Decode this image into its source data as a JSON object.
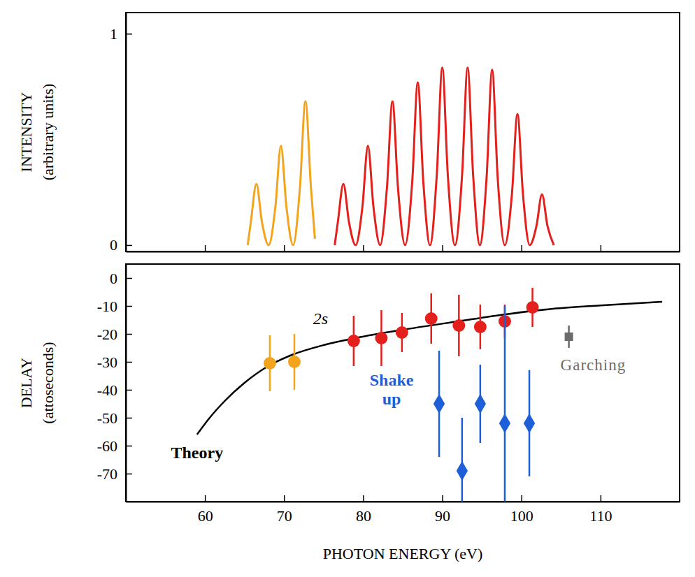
{
  "chart_data": [
    {
      "type": "line",
      "y_label": [
        "INTENSITY",
        "(arbitrary units)"
      ],
      "xlim": [
        50,
        120
      ],
      "xticks": [
        60,
        70,
        80,
        90,
        100,
        110
      ],
      "ylim": [
        -0.03,
        1.1
      ],
      "yticks": [
        0,
        1
      ],
      "tick_labels": "y",
      "series": [
        {
          "color": "#f2a51c",
          "x": [
            65.4,
            65.8,
            66.5,
            67.2,
            68.05,
            68.9,
            69.6,
            70.3,
            71.15,
            72.0,
            72.7,
            73.4,
            73.9
          ],
          "values": [
            0.0,
            0.11,
            0.29,
            0.11,
            0.0,
            0.18,
            0.47,
            0.18,
            0.0,
            0.27,
            0.68,
            0.27,
            0.03
          ]
        },
        {
          "color": "#e3201c",
          "x": [
            76.4,
            76.8,
            77.5,
            78.2,
            79.05,
            79.9,
            80.6,
            81.3,
            82.15,
            83.0,
            83.7,
            84.4,
            85.3,
            86.2,
            86.9,
            87.6,
            88.45,
            89.3,
            90.0,
            90.7,
            91.6,
            92.5,
            93.2,
            93.9,
            94.75,
            95.6,
            96.3,
            97.0,
            97.9,
            98.8,
            99.5,
            100.2,
            101.05,
            101.9,
            102.6,
            103.3,
            104.1
          ],
          "values": [
            0.0,
            0.11,
            0.29,
            0.11,
            0.0,
            0.18,
            0.47,
            0.18,
            0.0,
            0.27,
            0.68,
            0.27,
            0.0,
            0.3,
            0.77,
            0.3,
            0.0,
            0.33,
            0.84,
            0.33,
            0.0,
            0.33,
            0.84,
            0.33,
            0.0,
            0.32,
            0.83,
            0.32,
            0.0,
            0.24,
            0.62,
            0.24,
            0.0,
            0.09,
            0.24,
            0.09,
            0.0
          ]
        }
      ]
    },
    {
      "type": "scatter",
      "x_label": "PHOTON ENERGY (eV)",
      "y_label": [
        "DELAY",
        "(attoseconds)"
      ],
      "xlim": [
        50,
        120
      ],
      "xticks": [
        60,
        70,
        80,
        90,
        100,
        110
      ],
      "ylim": [
        -80,
        5
      ],
      "yticks": [
        0,
        -10,
        -20,
        -30,
        -40,
        -50,
        -60,
        -70
      ],
      "annotations": [
        "2s"
      ],
      "series": [
        {
          "name": "Theory",
          "type": "line",
          "color": "#000000",
          "x": [
            59.0,
            60.6,
            62.5,
            65,
            68,
            71,
            75,
            79,
            85,
            92,
            98,
            104,
            110,
            117.8
          ],
          "values": [
            -56,
            -50,
            -44,
            -37.5,
            -31.5,
            -27.5,
            -24,
            -21.5,
            -18.5,
            -15.5,
            -13,
            -11,
            -9.8,
            -8.5
          ]
        },
        {
          "type": "scatter",
          "marker": "circle",
          "color": "#f2a51c",
          "x": [
            68.2,
            71.3
          ],
          "values": [
            -30.5,
            -30
          ],
          "error": [
            10,
            10
          ]
        },
        {
          "type": "scatter",
          "marker": "circle",
          "color": "#e3201c",
          "x": [
            78.8,
            82.3,
            84.9,
            88.6,
            92.1,
            94.8,
            97.9,
            101.4
          ],
          "values": [
            -22.5,
            -21.5,
            -19.5,
            -14.5,
            -17,
            -17.5,
            -15.5,
            -10.5
          ],
          "error": [
            9,
            10,
            7,
            9,
            11,
            8,
            6,
            7
          ]
        },
        {
          "name": "Shake up",
          "type": "scatter",
          "marker": "diamond",
          "color": "#1d5fd8",
          "x": [
            89.6,
            92.5,
            94.8,
            97.9,
            101.0
          ],
          "values": [
            -45,
            -69,
            -45,
            -52,
            -52
          ],
          "error": [
            19,
            19,
            14,
            42,
            19
          ]
        },
        {
          "name": "Garching",
          "type": "scatter",
          "marker": "square",
          "color": "#6b6b6b",
          "x": [
            106.0
          ],
          "values": [
            -21
          ],
          "error": [
            4
          ]
        }
      ]
    }
  ]
}
